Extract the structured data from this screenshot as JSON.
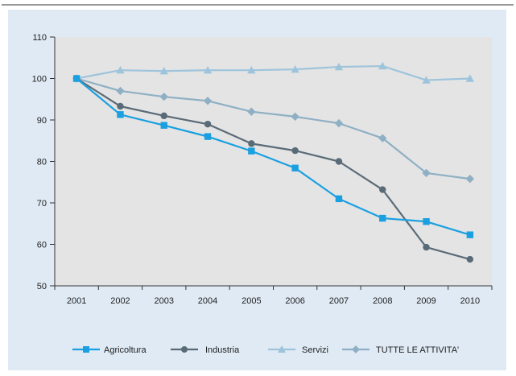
{
  "chart_data": {
    "type": "line",
    "title": "",
    "xlabel": "",
    "ylabel": "",
    "x": [
      "2001",
      "2002",
      "2003",
      "2004",
      "2005",
      "2006",
      "2007",
      "2008",
      "2009",
      "2010"
    ],
    "ylim": [
      50,
      110
    ],
    "yticks": [
      "50",
      "60",
      "70",
      "80",
      "90",
      "100",
      "110"
    ],
    "grid": false,
    "legend_position": "bottom",
    "colors": {
      "outer_background": "#dfeaf4",
      "plot_background": "#e4e4e4",
      "axis": "#333333"
    },
    "series": [
      {
        "name": "Agricoltura",
        "color": "#1aa0e0",
        "marker": "square",
        "values": [
          100,
          91.3,
          88.7,
          86,
          82.5,
          78.4,
          71,
          66.3,
          65.5,
          62.3
        ]
      },
      {
        "name": "Industria",
        "color": "#5a6b78",
        "marker": "circle",
        "values": [
          100,
          93.3,
          91,
          89,
          84.3,
          82.6,
          80,
          73.2,
          59.3,
          56.4
        ]
      },
      {
        "name": "Servizi",
        "color": "#9ec4dc",
        "marker": "triangle",
        "values": [
          100,
          102,
          101.8,
          102,
          102,
          102.2,
          102.8,
          103,
          99.6,
          100
        ]
      },
      {
        "name": "TUTTE LE ATTIVITA'",
        "color": "#8fb0c4",
        "marker": "diamond",
        "values": [
          100,
          97,
          95.6,
          94.6,
          92,
          90.8,
          89.2,
          85.6,
          77.2,
          75.8
        ]
      }
    ]
  }
}
